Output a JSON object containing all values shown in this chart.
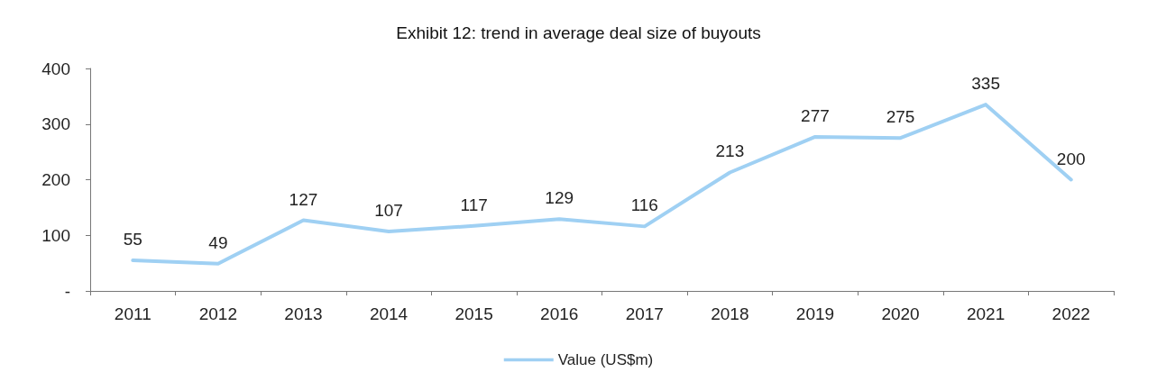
{
  "chart_data": {
    "type": "line",
    "title": "Exhibit 12: trend in average deal size of buyouts",
    "categories": [
      "2011",
      "2012",
      "2013",
      "2014",
      "2015",
      "2016",
      "2017",
      "2018",
      "2019",
      "2020",
      "2021",
      "2022"
    ],
    "series": [
      {
        "name": "Value (US$m)",
        "color": "#9fd0f3",
        "values": [
          55,
          49,
          127,
          107,
          117,
          129,
          116,
          213,
          277,
          275,
          335,
          200
        ]
      }
    ],
    "ylim": [
      0,
      400
    ],
    "yticks": [
      {
        "value": 0,
        "label": "-"
      },
      100,
      200,
      300,
      400
    ],
    "grid": false,
    "legend": "bottom",
    "data_labels": true,
    "marker": "none",
    "line_style": "solid"
  }
}
